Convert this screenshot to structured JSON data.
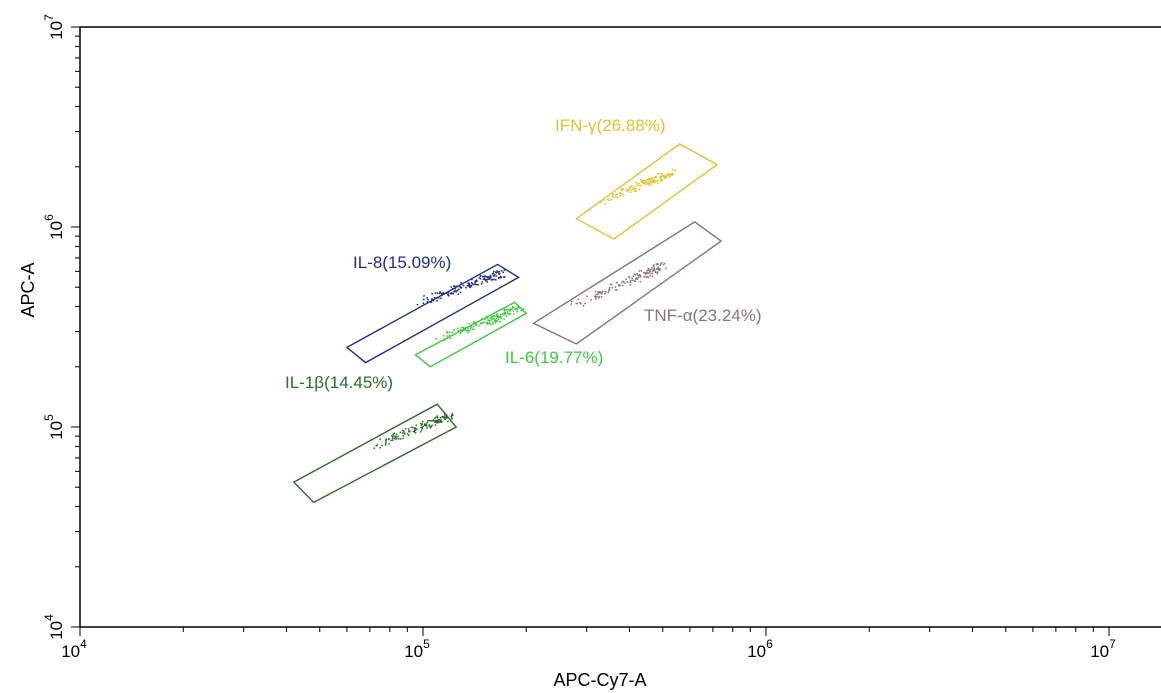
{
  "chart_data": {
    "type": "scatter",
    "title": "",
    "xlabel": "APC-Cy7-A",
    "ylabel": "APC-A",
    "x_scale": "log",
    "y_scale": "log",
    "xlim": [
      10000,
      13000000
    ],
    "ylim": [
      10000,
      10000000
    ],
    "x_ticks": [
      {
        "value": 10000,
        "base": "10",
        "exp": "4"
      },
      {
        "value": 100000,
        "base": "10",
        "exp": "5"
      },
      {
        "value": 1000000,
        "base": "10",
        "exp": "6"
      },
      {
        "value": 10000000,
        "base": "10",
        "exp": "7"
      }
    ],
    "y_ticks": [
      {
        "value": 10000,
        "base": "10",
        "exp": "4"
      },
      {
        "value": 100000,
        "base": "10",
        "exp": "5"
      },
      {
        "value": 1000000,
        "base": "10",
        "exp": "6"
      },
      {
        "value": 10000000,
        "base": "10",
        "exp": "7"
      }
    ],
    "grid": false,
    "series": [
      {
        "name": "IFN-γ(26.88%)",
        "color": "#e6c229",
        "gate": [
          [
            280000,
            1100000
          ],
          [
            560000,
            2600000
          ],
          [
            720000,
            2050000
          ],
          [
            360000,
            870000
          ]
        ],
        "cluster": {
          "x_range": [
            330000,
            530000
          ],
          "y_range": [
            1330000,
            1880000
          ]
        }
      },
      {
        "name": "TNF-α(23.24%)",
        "color": "#8a7478",
        "gate": [
          [
            210000,
            330000
          ],
          [
            620000,
            1060000
          ],
          [
            740000,
            850000
          ],
          [
            280000,
            260000
          ]
        ],
        "cluster": {
          "x_range": [
            270000,
            500000
          ],
          "y_range": [
            400000,
            640000
          ]
        }
      },
      {
        "name": "IL-8(15.09%)",
        "color": "#1e2d8c",
        "gate": [
          [
            60000,
            250000
          ],
          [
            165000,
            650000
          ],
          [
            190000,
            560000
          ],
          [
            68000,
            210000
          ]
        ],
        "cluster": {
          "x_range": [
            95000,
            170000
          ],
          "y_range": [
            410000,
            590000
          ]
        }
      },
      {
        "name": "IL-6(19.77%)",
        "color": "#3ccc3c",
        "gate": [
          [
            95000,
            230000
          ],
          [
            185000,
            420000
          ],
          [
            200000,
            370000
          ],
          [
            105000,
            200000
          ]
        ],
        "cluster": {
          "x_range": [
            110000,
            190000
          ],
          "y_range": [
            270000,
            390000
          ]
        }
      },
      {
        "name": "IL-1β(14.45%)",
        "color": "#2c6e2c",
        "gate": [
          [
            42000,
            53000
          ],
          [
            110000,
            130000
          ],
          [
            125000,
            100000
          ],
          [
            48000,
            42000
          ]
        ],
        "cluster": {
          "x_range": [
            70000,
            120000
          ],
          "y_range": [
            78000,
            115000
          ]
        }
      }
    ]
  }
}
